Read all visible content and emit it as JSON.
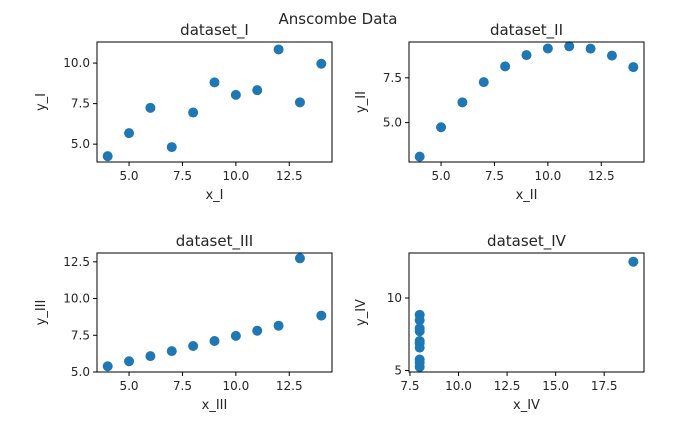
{
  "figure_title": "Anscombe Data",
  "colors": {
    "marker": "#1f77b4"
  },
  "chart_data": [
    {
      "type": "scatter",
      "title": "dataset_I",
      "xlabel": "x_I",
      "ylabel": "y_I",
      "xlim": [
        3.5,
        14.5
      ],
      "ylim": [
        3.9,
        11.3
      ],
      "xticks": [
        5.0,
        7.5,
        10.0,
        12.5
      ],
      "xtick_labels": [
        "5.0",
        "7.5",
        "10.0",
        "12.5"
      ],
      "yticks": [
        5.0,
        7.5,
        10.0
      ],
      "ytick_labels": [
        "5.0",
        "7.5",
        "10.0"
      ],
      "x": [
        10,
        8,
        13,
        9,
        11,
        14,
        6,
        4,
        12,
        7,
        5
      ],
      "y": [
        8.04,
        6.95,
        7.58,
        8.81,
        8.33,
        9.96,
        7.24,
        4.26,
        10.84,
        4.82,
        5.68
      ]
    },
    {
      "type": "scatter",
      "title": "dataset_II",
      "xlabel": "x_II",
      "ylabel": "y_II",
      "xlim": [
        3.5,
        14.5
      ],
      "ylim": [
        2.8,
        9.5
      ],
      "xticks": [
        5.0,
        7.5,
        10.0,
        12.5
      ],
      "xtick_labels": [
        "5.0",
        "7.5",
        "10.0",
        "12.5"
      ],
      "yticks": [
        5.0,
        7.5
      ],
      "ytick_labels": [
        "5.0",
        "7.5"
      ],
      "x": [
        10,
        8,
        13,
        9,
        11,
        14,
        6,
        4,
        12,
        7,
        5
      ],
      "y": [
        9.14,
        8.14,
        8.74,
        8.77,
        9.26,
        8.1,
        6.13,
        3.1,
        9.13,
        7.26,
        4.74
      ]
    },
    {
      "type": "scatter",
      "title": "dataset_III",
      "xlabel": "x_III",
      "ylabel": "y_III",
      "xlim": [
        3.5,
        14.5
      ],
      "ylim": [
        5.0,
        13.1
      ],
      "xticks": [
        5.0,
        7.5,
        10.0,
        12.5
      ],
      "xtick_labels": [
        "5.0",
        "7.5",
        "10.0",
        "12.5"
      ],
      "yticks": [
        5.0,
        7.5,
        10.0,
        12.5
      ],
      "ytick_labels": [
        "5.0",
        "7.5",
        "10.0",
        "12.5"
      ],
      "x": [
        10,
        8,
        13,
        9,
        11,
        14,
        6,
        4,
        12,
        7,
        5
      ],
      "y": [
        7.46,
        6.77,
        12.74,
        7.11,
        7.81,
        8.84,
        6.08,
        5.39,
        8.15,
        6.42,
        5.73
      ]
    },
    {
      "type": "scatter",
      "title": "dataset_IV",
      "xlabel": "x_IV",
      "ylabel": "y_IV",
      "xlim": [
        7.45,
        19.55
      ],
      "ylim": [
        4.9,
        13.1
      ],
      "xticks": [
        7.5,
        10.0,
        12.5,
        15.0,
        17.5
      ],
      "xtick_labels": [
        "7.5",
        "10.0",
        "12.5",
        "15.0",
        "17.5"
      ],
      "yticks": [
        5,
        10
      ],
      "ytick_labels": [
        "5",
        "10"
      ],
      "x": [
        8,
        8,
        8,
        8,
        8,
        8,
        8,
        19,
        8,
        8,
        8
      ],
      "y": [
        6.58,
        5.76,
        7.71,
        8.84,
        8.47,
        7.04,
        5.25,
        12.5,
        5.56,
        7.91,
        6.89
      ]
    }
  ]
}
